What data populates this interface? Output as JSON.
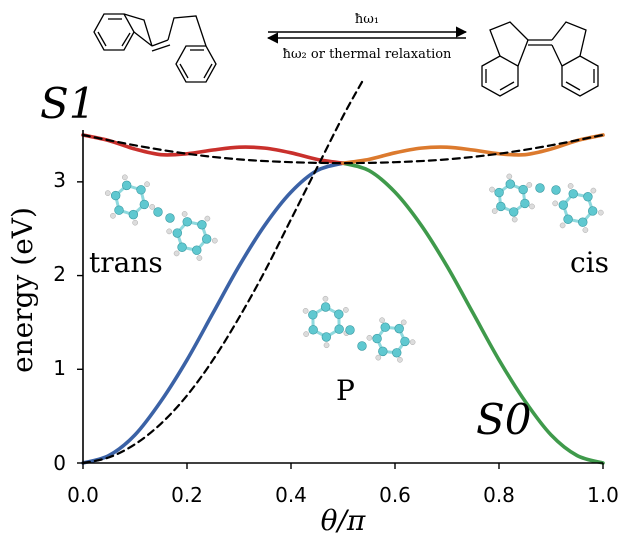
{
  "reaction": {
    "forward_label": "ħω₁",
    "backward_label": "ħω₂ or thermal relaxation"
  },
  "chart_data": {
    "type": "line",
    "xlabel": "θ/π",
    "ylabel": "energy (eV)",
    "xlim": [
      0,
      1
    ],
    "ylim": [
      0,
      3.5
    ],
    "xticks": [
      "0.0",
      "0.2",
      "0.4",
      "0.6",
      "0.8",
      "1.0"
    ],
    "yticks": [
      "0",
      "1",
      "2",
      "3"
    ],
    "grid": false,
    "state_labels": {
      "upper": "S1",
      "lower": "S0"
    },
    "annotations": [
      "trans",
      "P",
      "cis"
    ],
    "series": [
      {
        "color": "#3b62a6",
        "points": [
          [
            0,
            0
          ],
          [
            0.05,
            0.08
          ],
          [
            0.1,
            0.3
          ],
          [
            0.15,
            0.66
          ],
          [
            0.2,
            1.1
          ],
          [
            0.25,
            1.6
          ],
          [
            0.3,
            2.1
          ],
          [
            0.35,
            2.54
          ],
          [
            0.4,
            2.89
          ],
          [
            0.45,
            3.12
          ],
          [
            0.5,
            3.2
          ]
        ]
      },
      {
        "color": "#3f9a4b",
        "points": [
          [
            0.5,
            3.2
          ],
          [
            0.55,
            3.12
          ],
          [
            0.6,
            2.89
          ],
          [
            0.65,
            2.54
          ],
          [
            0.7,
            2.1
          ],
          [
            0.75,
            1.6
          ],
          [
            0.8,
            1.1
          ],
          [
            0.85,
            0.66
          ],
          [
            0.9,
            0.3
          ],
          [
            0.95,
            0.08
          ],
          [
            1,
            0
          ]
        ]
      },
      {
        "color": "#c9302c",
        "points": [
          [
            0,
            3.5
          ],
          [
            0.05,
            3.44
          ],
          [
            0.1,
            3.35
          ],
          [
            0.15,
            3.29
          ],
          [
            0.2,
            3.3
          ],
          [
            0.25,
            3.34
          ],
          [
            0.3,
            3.37
          ],
          [
            0.35,
            3.36
          ],
          [
            0.4,
            3.31
          ],
          [
            0.45,
            3.24
          ],
          [
            0.5,
            3.2
          ]
        ]
      },
      {
        "color": "#dc7a2e",
        "points": [
          [
            0.5,
            3.2
          ],
          [
            0.55,
            3.24
          ],
          [
            0.6,
            3.31
          ],
          [
            0.65,
            3.36
          ],
          [
            0.7,
            3.37
          ],
          [
            0.75,
            3.34
          ],
          [
            0.8,
            3.3
          ],
          [
            0.85,
            3.29
          ],
          [
            0.9,
            3.35
          ],
          [
            0.95,
            3.44
          ],
          [
            1,
            3.5
          ]
        ]
      },
      {
        "color": "#000000",
        "dashed": true,
        "points": [
          [
            0,
            0
          ],
          [
            0.05,
            0.06
          ],
          [
            0.1,
            0.2
          ],
          [
            0.15,
            0.42
          ],
          [
            0.2,
            0.72
          ],
          [
            0.25,
            1.1
          ],
          [
            0.3,
            1.55
          ],
          [
            0.35,
            2.05
          ],
          [
            0.4,
            2.6
          ],
          [
            0.45,
            3.15
          ],
          [
            0.5,
            3.7
          ],
          [
            0.54,
            4.1
          ]
        ]
      },
      {
        "color": "#000000",
        "dashed": true,
        "points": [
          [
            0,
            3.5
          ],
          [
            0.1,
            3.39
          ],
          [
            0.2,
            3.3
          ],
          [
            0.3,
            3.24
          ],
          [
            0.4,
            3.21
          ],
          [
            0.5,
            3.2
          ],
          [
            0.6,
            3.21
          ],
          [
            0.7,
            3.24
          ],
          [
            0.8,
            3.3
          ],
          [
            0.9,
            3.39
          ],
          [
            1,
            3.5
          ]
        ]
      }
    ]
  },
  "molecule_colors": {
    "carbon": "#5fc8d0",
    "hydrogen": "#dcdcdc",
    "bond": "#8ed9de"
  }
}
